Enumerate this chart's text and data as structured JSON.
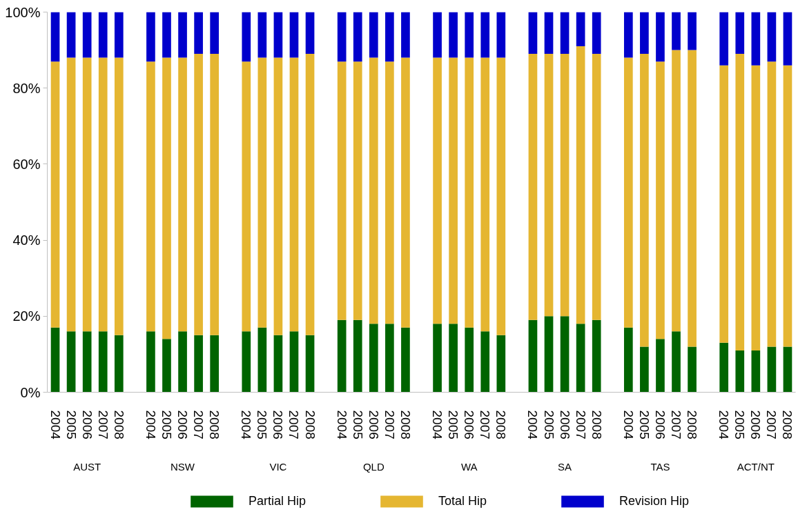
{
  "chart_data": {
    "type": "bar",
    "stacked": true,
    "categories": [
      "2004",
      "2005",
      "2006",
      "2007",
      "2008",
      null,
      "2004",
      "2005",
      "2006",
      "2007",
      "2008",
      null,
      "2004",
      "2005",
      "2006",
      "2007",
      "2008",
      null,
      "2004",
      "2005",
      "2006",
      "2007",
      "2008",
      null,
      "2004",
      "2005",
      "2006",
      "2007",
      "2008",
      null,
      "2004",
      "2005",
      "2006",
      "2007",
      "2008",
      null,
      "2004",
      "2005",
      "2006",
      "2007",
      "2008",
      null,
      "2004",
      "2005",
      "2006",
      "2007",
      "2008"
    ],
    "annotations": [
      "AUST",
      "NSW",
      "VIC",
      "QLD",
      "WA",
      "SA",
      "TAS",
      "ACT/NT"
    ],
    "series": [
      {
        "name": "Partial Hip",
        "color": "#006400",
        "values": [
          17,
          16,
          16,
          16,
          15,
          null,
          16,
          14,
          16,
          15,
          15,
          null,
          16,
          17,
          15,
          16,
          15,
          null,
          19,
          19,
          18,
          18,
          17,
          null,
          18,
          18,
          17,
          16,
          15,
          null,
          19,
          20,
          20,
          18,
          19,
          null,
          17,
          12,
          14,
          16,
          12,
          null,
          13,
          11,
          11,
          12,
          12
        ]
      },
      {
        "name": "Total Hip",
        "color": "#e5b631",
        "values": [
          70,
          72,
          72,
          72,
          73,
          null,
          71,
          74,
          72,
          74,
          74,
          null,
          71,
          71,
          73,
          72,
          74,
          null,
          68,
          68,
          70,
          69,
          71,
          null,
          70,
          70,
          71,
          72,
          73,
          null,
          70,
          69,
          69,
          73,
          70,
          null,
          71,
          77,
          73,
          74,
          78,
          null,
          73,
          78,
          75,
          75,
          74
        ]
      },
      {
        "name": "Revision Hip",
        "color": "#0000cc",
        "values": [
          13,
          12,
          12,
          12,
          12,
          null,
          13,
          12,
          12,
          11,
          11,
          null,
          13,
          12,
          12,
          12,
          11,
          null,
          13,
          13,
          12,
          13,
          12,
          null,
          12,
          12,
          12,
          12,
          12,
          null,
          11,
          11,
          11,
          9,
          11,
          null,
          12,
          11,
          13,
          10,
          10,
          null,
          14,
          11,
          14,
          13,
          14
        ]
      }
    ],
    "ylim": [
      0,
      100
    ],
    "yticks": [
      {
        "value": 0,
        "label": "0%"
      },
      {
        "value": 20,
        "label": "20%"
      },
      {
        "value": 40,
        "label": "40%"
      },
      {
        "value": 60,
        "label": "60%"
      },
      {
        "value": 80,
        "label": "80%"
      },
      {
        "value": 100,
        "label": "100%"
      }
    ],
    "legend": "bottom"
  }
}
